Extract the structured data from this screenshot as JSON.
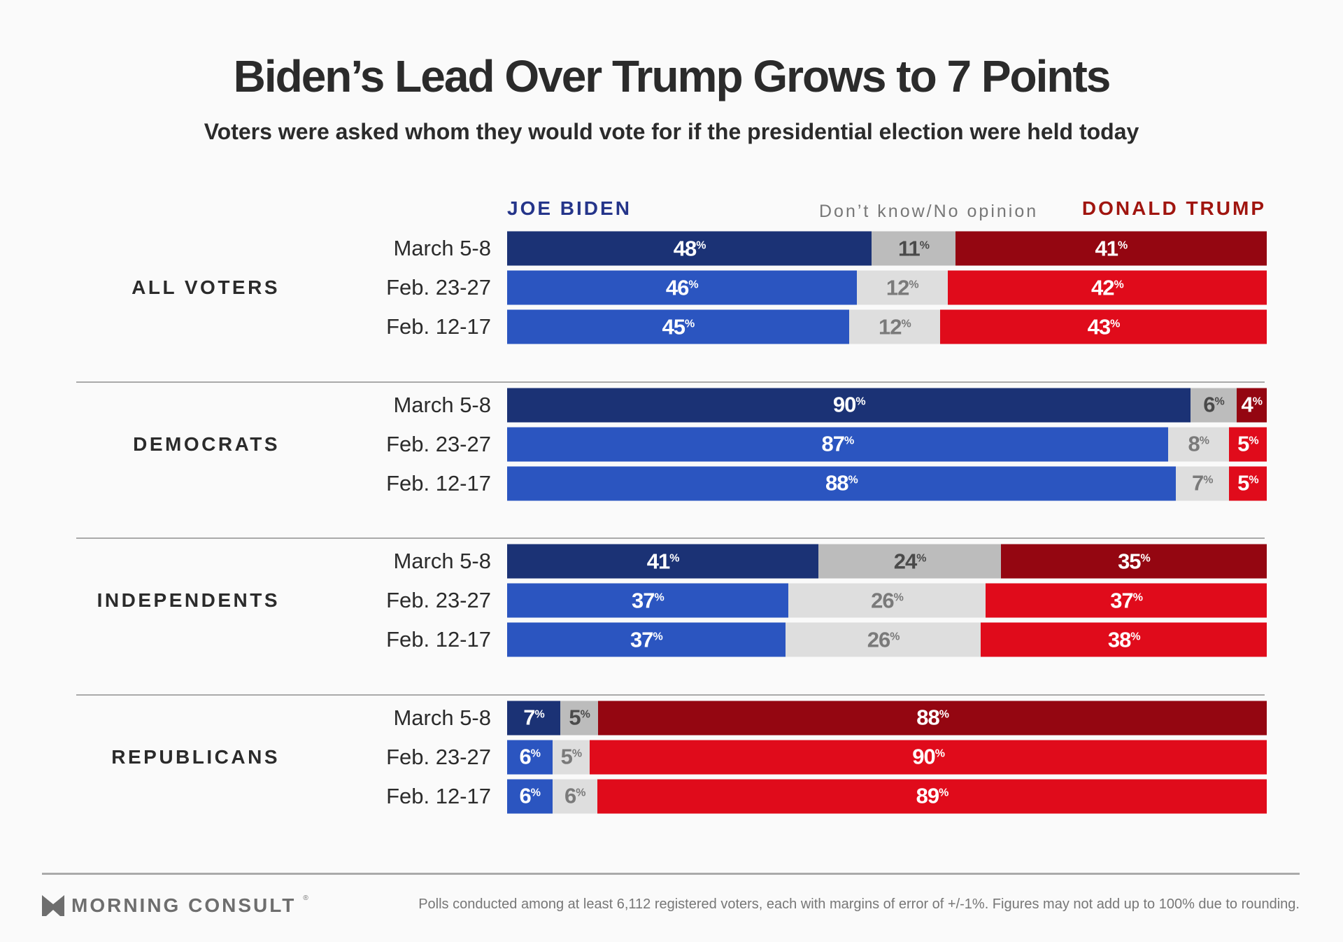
{
  "chart_data": {
    "type": "bar",
    "orientation": "horizontal-stacked",
    "title": "Biden’s Lead Over Trump Grows to 7 Points",
    "subtitle": "Voters were asked whom they would vote for if the presidential election were held today",
    "legend": [
      "JOE BIDEN",
      "Don’t know/No opinion",
      "DONALD TRUMP"
    ],
    "unit": "%",
    "colors": {
      "biden_latest": "#1b3275",
      "biden": "#2b55c0",
      "dk_latest": "#bcbcbc",
      "dk": "#dedede",
      "trump_latest": "#940611",
      "trump": "#e00b1b"
    },
    "groups": [
      {
        "label": "ALL VOTERS",
        "rows": [
          {
            "date": "March 5-8",
            "biden": 48,
            "dk": 11,
            "trump": 41
          },
          {
            "date": "Feb. 23-27",
            "biden": 46,
            "dk": 12,
            "trump": 42
          },
          {
            "date": "Feb. 12-17",
            "biden": 45,
            "dk": 12,
            "trump": 43
          }
        ]
      },
      {
        "label": "DEMOCRATS",
        "rows": [
          {
            "date": "March 5-8",
            "biden": 90,
            "dk": 6,
            "trump": 4
          },
          {
            "date": "Feb. 23-27",
            "biden": 87,
            "dk": 8,
            "trump": 5
          },
          {
            "date": "Feb. 12-17",
            "biden": 88,
            "dk": 7,
            "trump": 5
          }
        ]
      },
      {
        "label": "INDEPENDENTS",
        "rows": [
          {
            "date": "March 5-8",
            "biden": 41,
            "dk": 24,
            "trump": 35
          },
          {
            "date": "Feb. 23-27",
            "biden": 37,
            "dk": 26,
            "trump": 37
          },
          {
            "date": "Feb. 12-17",
            "biden": 37,
            "dk": 26,
            "trump": 38
          }
        ]
      },
      {
        "label": "REPUBLICANS",
        "rows": [
          {
            "date": "March 5-8",
            "biden": 7,
            "dk": 5,
            "trump": 88
          },
          {
            "date": "Feb. 23-27",
            "biden": 6,
            "dk": 5,
            "trump": 90
          },
          {
            "date": "Feb. 12-17",
            "biden": 6,
            "dk": 6,
            "trump": 89
          }
        ]
      }
    ]
  },
  "footer": {
    "logo_text": "MORNING CONSULT",
    "note": "Polls conducted among at least 6,112 registered voters, each with margins of error of +/-1%. Figures may not add up to 100% due to rounding."
  }
}
